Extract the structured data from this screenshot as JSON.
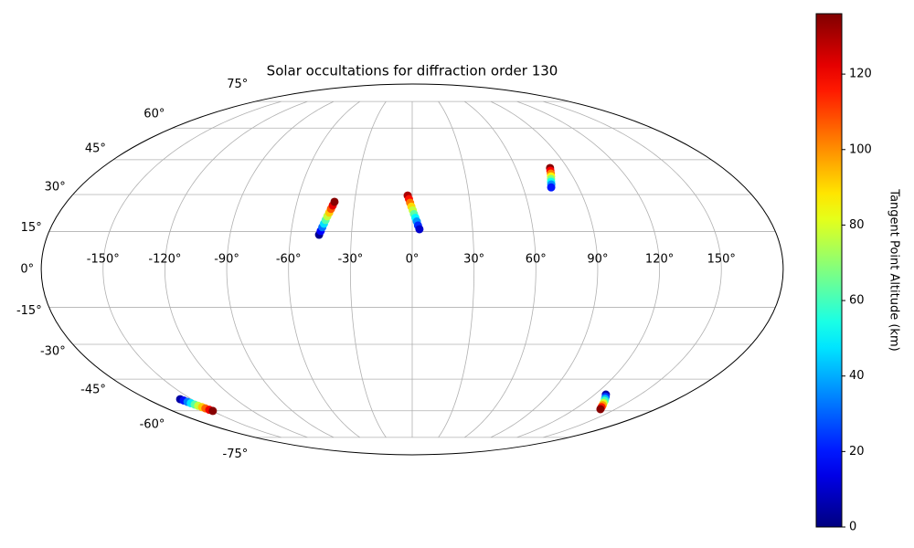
{
  "chart_data": {
    "type": "scatter",
    "projection": "mollweide",
    "title": "Solar occultations for diffraction order 130",
    "grid": true,
    "xlim": [
      -180,
      180
    ],
    "ylim": [
      -90,
      90
    ],
    "xticks": [
      {
        "value": -150,
        "label": "-150°"
      },
      {
        "value": -120,
        "label": "-120°"
      },
      {
        "value": -90,
        "label": "-90°"
      },
      {
        "value": -60,
        "label": "-60°"
      },
      {
        "value": -30,
        "label": "-30°"
      },
      {
        "value": 0,
        "label": "0°"
      },
      {
        "value": 30,
        "label": "30°"
      },
      {
        "value": 60,
        "label": "60°"
      },
      {
        "value": 90,
        "label": "90°"
      },
      {
        "value": 120,
        "label": "120°"
      },
      {
        "value": 150,
        "label": "150°"
      }
    ],
    "yticks": [
      {
        "value": -75,
        "label": "-75°"
      },
      {
        "value": -60,
        "label": "-60°"
      },
      {
        "value": -45,
        "label": "-45°"
      },
      {
        "value": -30,
        "label": "-30°"
      },
      {
        "value": -15,
        "label": "-15°"
      },
      {
        "value": 0,
        "label": "0°"
      },
      {
        "value": 15,
        "label": "15°"
      },
      {
        "value": 30,
        "label": "30°"
      },
      {
        "value": 45,
        "label": "45°"
      },
      {
        "value": 60,
        "label": "60°"
      },
      {
        "value": 75,
        "label": "75°"
      }
    ],
    "colormap": "jet",
    "clim": [
      0,
      136
    ],
    "colorbar_ticks": [
      0,
      20,
      40,
      60,
      80,
      100,
      120
    ],
    "colorbar_label": "Tangent Point Altitude (km)",
    "series": [
      {
        "x": [
          -46,
          -45.4,
          -44.8,
          -44.2,
          -43.6,
          -43.0,
          -42.3,
          -41.7,
          -41.1,
          -40.5,
          -2.4,
          -1.7,
          -1.1,
          -0.4,
          0.3,
          0.9,
          1.6,
          2.3,
          2.9,
          3.6,
          79.9,
          79.2,
          78.6,
          77.9,
          77.2,
          76.5,
          75.9,
          75.2,
          127.4,
          129.1,
          130.7,
          132.4,
          134.0,
          135.7,
          137.3,
          139.0,
          -157.7,
          -156.8,
          -155.9,
          -155.1,
          -154.2,
          -153.3,
          -152.4,
          -151.6,
          -150.7,
          -149.8
        ],
        "y": [
          13.7,
          15.2,
          16.7,
          18.1,
          19.6,
          21.1,
          22.6,
          24.1,
          25.5,
          27.0,
          29.6,
          28.1,
          26.6,
          25.0,
          23.5,
          22.0,
          20.5,
          19.0,
          17.4,
          15.9,
          41.3,
          40.1,
          38.9,
          37.7,
          36.6,
          35.4,
          34.2,
          33.0,
          -52.1,
          -53.1,
          -54.1,
          -55.1,
          -56.2,
          -57.2,
          -58.2,
          -59.2,
          -54.3,
          -54.9,
          -55.6,
          -56.2,
          -56.9,
          -57.5,
          -58.2,
          -58.8,
          -59.5,
          -60.1
        ],
        "c": [
          2,
          17,
          32,
          47,
          62,
          77,
          92,
          107,
          122,
          135,
          130,
          117,
          103,
          90,
          77,
          63,
          50,
          37,
          23,
          10,
          135,
          119,
          102,
          86,
          69,
          53,
          36,
          20,
          5,
          24,
          42,
          61,
          79,
          98,
          116,
          135,
          5,
          19,
          34,
          48,
          63,
          77,
          92,
          106,
          121,
          135
        ]
      }
    ]
  }
}
